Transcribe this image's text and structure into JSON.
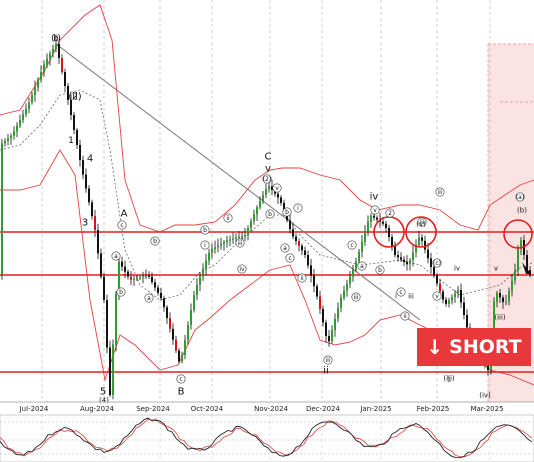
{
  "chart_data": {
    "type": "line",
    "subtype": "candlestick-with-elliott-waves",
    "x_axis_labels": [
      "Jul-2024",
      "Aug-2024",
      "Sep-2024",
      "Oct-2024",
      "Nov-2024",
      "Dec-2024",
      "Jan-2025",
      "Feb-2025",
      "Mar-2025"
    ],
    "horizontal_levels": 3,
    "indicators": [
      "bollinger-bands",
      "moving-average",
      "stochastic-oscillator"
    ],
    "short_zone": "top-right",
    "signal": {
      "arrow": "↓",
      "label": "SHORT"
    },
    "wave_labels": [
      "(I)",
      "2",
      "1",
      "4",
      "3",
      "A",
      "5",
      "(4)",
      "c",
      "b",
      "a",
      "b",
      "a",
      "B",
      "c",
      "b",
      "i",
      "ii",
      "iii",
      "iv",
      "v",
      "C",
      "(2)",
      "v",
      "b",
      "a",
      "b",
      "c",
      "i",
      "ii",
      "iii",
      "iv",
      "v",
      "2",
      "c",
      "iii",
      "a",
      "b",
      "i",
      "ii",
      "iii",
      "iv",
      "v",
      "(iii)",
      "(iv)",
      "(a)",
      "(b)",
      "(v)",
      "ii",
      "(c)",
      "1",
      "c",
      "v",
      "iii",
      "iii",
      "(iii)",
      "b",
      "(ii)"
    ]
  }
}
